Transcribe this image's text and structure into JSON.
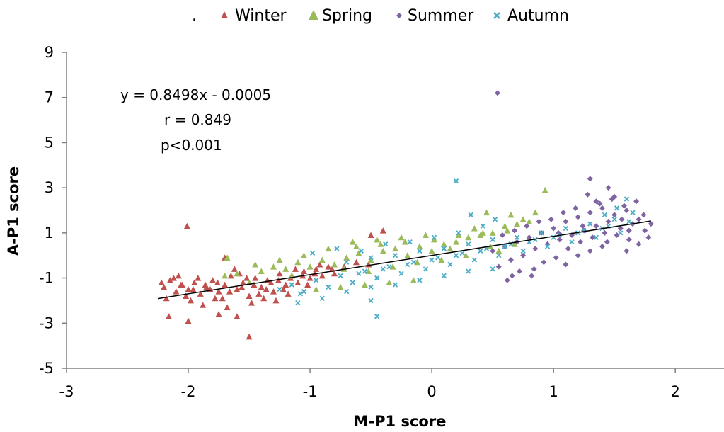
{
  "chart_data": {
    "type": "scatter",
    "title": "",
    "xlabel": "M-P1 score",
    "ylabel": "A-P1 score",
    "xlim": [
      -3,
      2.4
    ],
    "ylim": [
      -5,
      9
    ],
    "xticks": [
      "-3",
      "-2",
      "-1",
      "0",
      "1",
      "2"
    ],
    "yticks": [
      "-5",
      "-3",
      "-1",
      "1",
      "3",
      "5",
      "7",
      "9"
    ],
    "legend_position": "top",
    "legend_prefix": ".",
    "grid": false,
    "annotations": [
      "y = 0.8498x - 0.0005",
      "r = 0.849",
      "p<0.001"
    ],
    "regression": {
      "slope": 0.8498,
      "intercept": -0.0005,
      "x_range": [
        -2.25,
        1.8
      ],
      "color": "#000000"
    },
    "series": [
      {
        "name": "Winter",
        "marker": "triangle",
        "color": "#C0504D",
        "points": [
          [
            -2.2,
            -1.4
          ],
          [
            -2.15,
            -1.1
          ],
          [
            -2.1,
            -1.6
          ],
          [
            -2.05,
            -1.3
          ],
          [
            -2.0,
            -1.5
          ],
          [
            -1.95,
            -1.2
          ],
          [
            -1.9,
            -1.7
          ],
          [
            -1.85,
            -1.4
          ],
          [
            -1.8,
            -1.1
          ],
          [
            -1.75,
            -1.6
          ],
          [
            -1.7,
            -1.3
          ],
          [
            -1.65,
            -0.9
          ],
          [
            -1.6,
            -1.5
          ],
          [
            -1.55,
            -1.2
          ],
          [
            -1.5,
            -1.8
          ],
          [
            -1.45,
            -1.0
          ],
          [
            -1.4,
            -1.4
          ],
          [
            -1.35,
            -1.1
          ],
          [
            -1.3,
            -1.6
          ],
          [
            -1.25,
            -0.8
          ],
          [
            -1.2,
            -1.3
          ],
          [
            -1.15,
            -0.9
          ],
          [
            -1.1,
            -1.2
          ],
          [
            -1.05,
            -0.7
          ],
          [
            -1.0,
            -1.0
          ],
          [
            -0.95,
            -0.6
          ],
          [
            -0.9,
            -0.9
          ],
          [
            -0.85,
            -0.5
          ],
          [
            -0.8,
            -0.8
          ],
          [
            -2.18,
            -1.9
          ],
          [
            -2.08,
            -0.9
          ],
          [
            -1.98,
            -2.0
          ],
          [
            -1.88,
            -2.2
          ],
          [
            -1.78,
            -1.9
          ],
          [
            -1.68,
            -2.3
          ],
          [
            -1.58,
            -0.8
          ],
          [
            -1.48,
            -2.1
          ],
          [
            -1.38,
            -1.9
          ],
          [
            -1.28,
            -2.0
          ],
          [
            -1.18,
            -1.7
          ],
          [
            -2.12,
            -1.0
          ],
          [
            -2.02,
            -1.8
          ],
          [
            -1.92,
            -1.0
          ],
          [
            -1.82,
            -1.5
          ],
          [
            -1.72,
            -1.9
          ],
          [
            -1.62,
            -0.6
          ],
          [
            -1.52,
            -1.0
          ],
          [
            -1.42,
            -1.7
          ],
          [
            -1.32,
            -1.2
          ],
          [
            -1.22,
            -1.5
          ],
          [
            -1.12,
            -0.6
          ],
          [
            -1.02,
            -1.3
          ],
          [
            -0.92,
            -0.4
          ],
          [
            -0.82,
            -0.6
          ],
          [
            -0.72,
            -0.5
          ],
          [
            -0.62,
            -0.3
          ],
          [
            -0.52,
            -0.4
          ],
          [
            -2.22,
            -1.2
          ],
          [
            -2.06,
            -1.3
          ],
          [
            -1.96,
            -1.5
          ],
          [
            -1.86,
            -1.3
          ],
          [
            -1.76,
            -1.2
          ],
          [
            -1.66,
            -1.6
          ],
          [
            -1.56,
            -1.4
          ],
          [
            -1.46,
            -1.3
          ],
          [
            -1.36,
            -1.5
          ],
          [
            -1.26,
            -1.1
          ],
          [
            -1.16,
            -1.0
          ],
          [
            -1.06,
            -0.9
          ],
          [
            -0.96,
            -0.8
          ],
          [
            -2.16,
            -2.7
          ],
          [
            -2.0,
            -2.9
          ],
          [
            -1.75,
            -2.6
          ],
          [
            -1.6,
            -2.7
          ],
          [
            -2.01,
            1.3
          ],
          [
            -1.5,
            -3.6
          ],
          [
            -0.5,
            0.9
          ],
          [
            -0.4,
            1.1
          ],
          [
            -1.7,
            -0.1
          ]
        ]
      },
      {
        "name": "Spring",
        "marker": "triangle",
        "color": "#9BBB59",
        "points": [
          [
            -1.7,
            -0.9
          ],
          [
            -1.6,
            -0.8
          ],
          [
            -1.5,
            -1.2
          ],
          [
            -1.4,
            -0.7
          ],
          [
            -1.3,
            -0.5
          ],
          [
            -1.2,
            -0.6
          ],
          [
            -1.1,
            -0.3
          ],
          [
            -1.0,
            -0.5
          ],
          [
            -0.9,
            -0.2
          ],
          [
            -0.8,
            -0.4
          ],
          [
            -0.7,
            -0.1
          ],
          [
            -0.6,
            0.1
          ],
          [
            -0.5,
            -0.2
          ],
          [
            -0.4,
            0.2
          ],
          [
            -0.3,
            0.3
          ],
          [
            -0.2,
            0.0
          ],
          [
            -0.1,
            0.4
          ],
          [
            0.0,
            0.2
          ],
          [
            0.1,
            0.5
          ],
          [
            0.2,
            0.6
          ],
          [
            0.3,
            0.8
          ],
          [
            0.4,
            0.9
          ],
          [
            0.5,
            1.0
          ],
          [
            0.6,
            1.3
          ],
          [
            0.7,
            1.4
          ],
          [
            0.8,
            1.5
          ],
          [
            -0.75,
            -1.4
          ],
          [
            -0.55,
            -1.3
          ],
          [
            -0.35,
            -1.2
          ],
          [
            -0.15,
            -1.1
          ],
          [
            -0.95,
            -1.5
          ],
          [
            -0.65,
            0.6
          ],
          [
            -0.45,
            0.7
          ],
          [
            -0.25,
            0.8
          ],
          [
            -0.05,
            0.9
          ],
          [
            0.15,
            0.3
          ],
          [
            0.35,
            1.2
          ],
          [
            0.55,
            0.2
          ],
          [
            0.75,
            1.6
          ],
          [
            0.45,
            1.9
          ],
          [
            0.65,
            1.8
          ],
          [
            0.85,
            1.9
          ],
          [
            0.93,
            2.9
          ],
          [
            -1.25,
            -0.2
          ],
          [
            -1.05,
            0.0
          ],
          [
            -0.85,
            0.3
          ],
          [
            -0.72,
            -0.6
          ],
          [
            -0.52,
            -0.7
          ],
          [
            -0.32,
            -0.5
          ],
          [
            -0.12,
            -0.3
          ],
          [
            0.08,
            -0.2
          ],
          [
            0.28,
            0.0
          ],
          [
            0.48,
            0.4
          ],
          [
            0.68,
            0.5
          ],
          [
            -1.45,
            -0.4
          ],
          [
            -1.15,
            -0.9
          ],
          [
            -0.62,
            0.4
          ],
          [
            -0.42,
            0.5
          ],
          [
            -0.22,
            0.6
          ],
          [
            0.02,
            0.7
          ],
          [
            0.22,
            0.9
          ],
          [
            0.42,
            1.0
          ],
          [
            0.62,
            1.1
          ],
          [
            -1.68,
            -0.1
          ]
        ]
      },
      {
        "name": "Summer",
        "marker": "diamond",
        "color": "#8064A2",
        "points": [
          [
            0.5,
            0.2
          ],
          [
            0.55,
            -0.5
          ],
          [
            0.6,
            0.4
          ],
          [
            0.65,
            -0.2
          ],
          [
            0.7,
            0.6
          ],
          [
            0.75,
            0.0
          ],
          [
            0.8,
            0.8
          ],
          [
            0.85,
            0.3
          ],
          [
            0.9,
            1.0
          ],
          [
            0.95,
            0.5
          ],
          [
            1.0,
            1.2
          ],
          [
            1.05,
            0.7
          ],
          [
            1.1,
            1.5
          ],
          [
            1.15,
            0.9
          ],
          [
            1.2,
            1.7
          ],
          [
            1.25,
            1.1
          ],
          [
            1.3,
            1.9
          ],
          [
            1.35,
            1.3
          ],
          [
            1.4,
            2.1
          ],
          [
            1.45,
            1.5
          ],
          [
            1.5,
            1.8
          ],
          [
            1.55,
            1.2
          ],
          [
            1.6,
            2.0
          ],
          [
            1.65,
            1.4
          ],
          [
            1.7,
            1.6
          ],
          [
            1.75,
            1.1
          ],
          [
            1.8,
            1.4
          ],
          [
            0.62,
            -1.1
          ],
          [
            0.72,
            -0.7
          ],
          [
            0.82,
            -0.9
          ],
          [
            0.92,
            -0.3
          ],
          [
            1.02,
            -0.1
          ],
          [
            1.12,
            0.3
          ],
          [
            1.22,
            0.6
          ],
          [
            1.32,
            0.8
          ],
          [
            1.42,
            1.0
          ],
          [
            1.52,
            0.9
          ],
          [
            1.62,
            0.7
          ],
          [
            1.28,
            2.7
          ],
          [
            1.3,
            3.4
          ],
          [
            1.35,
            2.4
          ],
          [
            1.45,
            3.0
          ],
          [
            1.5,
            2.6
          ],
          [
            1.58,
            2.2
          ],
          [
            1.68,
            2.4
          ],
          [
            0.54,
            7.2
          ],
          [
            1.1,
            -0.4
          ],
          [
            1.2,
            0.0
          ],
          [
            1.3,
            0.2
          ],
          [
            1.4,
            0.4
          ],
          [
            1.6,
            0.2
          ],
          [
            1.7,
            0.5
          ],
          [
            1.78,
            0.8
          ],
          [
            0.58,
            0.9
          ],
          [
            0.68,
            1.1
          ],
          [
            0.78,
            1.3
          ],
          [
            0.88,
            1.5
          ],
          [
            0.98,
            1.6
          ],
          [
            1.08,
            1.9
          ],
          [
            1.18,
            2.1
          ],
          [
            1.38,
            2.3
          ],
          [
            1.48,
            2.5
          ],
          [
            1.56,
            1.6
          ],
          [
            1.74,
            1.8
          ],
          [
            1.62,
            1.1
          ],
          [
            1.44,
            0.6
          ],
          [
            1.24,
            1.3
          ],
          [
            1.04,
            1.0
          ],
          [
            0.84,
            -0.6
          ],
          [
            0.66,
            -0.9
          ]
        ]
      },
      {
        "name": "Autumn",
        "marker": "x",
        "color": "#4BACC6",
        "points": [
          [
            -1.25,
            -1.5
          ],
          [
            -1.15,
            -1.3
          ],
          [
            -1.05,
            -1.6
          ],
          [
            -0.95,
            -1.1
          ],
          [
            -0.85,
            -1.4
          ],
          [
            -0.75,
            -0.9
          ],
          [
            -0.65,
            -1.2
          ],
          [
            -0.55,
            -0.7
          ],
          [
            -0.45,
            -1.0
          ],
          [
            -0.35,
            -0.5
          ],
          [
            -0.25,
            -0.8
          ],
          [
            -0.15,
            -0.3
          ],
          [
            -0.05,
            -0.6
          ],
          [
            0.05,
            -0.1
          ],
          [
            0.15,
            -0.4
          ],
          [
            0.25,
            0.1
          ],
          [
            0.35,
            -0.2
          ],
          [
            0.45,
            0.3
          ],
          [
            0.55,
            0.0
          ],
          [
            0.65,
            0.5
          ],
          [
            0.75,
            0.2
          ],
          [
            0.85,
            0.7
          ],
          [
            0.95,
            0.4
          ],
          [
            1.05,
            0.9
          ],
          [
            1.15,
            0.6
          ],
          [
            1.25,
            1.1
          ],
          [
            1.35,
            0.8
          ],
          [
            1.45,
            1.3
          ],
          [
            1.55,
            1.0
          ],
          [
            1.62,
            1.5
          ],
          [
            -1.1,
            -2.1
          ],
          [
            -0.9,
            -1.9
          ],
          [
            -0.7,
            -1.6
          ],
          [
            -0.5,
            -1.4
          ],
          [
            -0.3,
            -1.3
          ],
          [
            -0.1,
            -1.1
          ],
          [
            0.1,
            -0.9
          ],
          [
            0.3,
            -0.7
          ],
          [
            0.5,
            -0.6
          ],
          [
            -0.5,
            -2.0
          ],
          [
            -0.45,
            -2.7
          ],
          [
            -1.08,
            -1.7
          ],
          [
            -0.98,
            0.1
          ],
          [
            -0.78,
            0.3
          ],
          [
            -0.58,
            0.2
          ],
          [
            -0.38,
            0.5
          ],
          [
            -0.18,
            0.6
          ],
          [
            0.02,
            0.8
          ],
          [
            0.22,
            1.0
          ],
          [
            0.42,
            1.3
          ],
          [
            0.52,
            1.6
          ],
          [
            0.2,
            3.3
          ],
          [
            0.32,
            1.8
          ],
          [
            1.6,
            2.5
          ],
          [
            1.65,
            1.9
          ],
          [
            1.52,
            2.1
          ],
          [
            1.42,
            1.8
          ],
          [
            -0.7,
            -0.3
          ],
          [
            -0.5,
            -0.1
          ],
          [
            -0.3,
            0.0
          ],
          [
            -0.1,
            0.2
          ],
          [
            0.1,
            0.3
          ],
          [
            0.3,
            0.5
          ],
          [
            0.5,
            0.7
          ],
          [
            0.7,
            0.8
          ],
          [
            0.9,
            1.0
          ],
          [
            1.1,
            1.2
          ],
          [
            1.3,
            1.4
          ],
          [
            1.5,
            1.6
          ],
          [
            -0.6,
            -0.8
          ],
          [
            -0.4,
            -0.6
          ],
          [
            -0.2,
            -0.4
          ],
          [
            0.0,
            -0.2
          ],
          [
            0.2,
            0.0
          ],
          [
            0.4,
            0.2
          ],
          [
            0.6,
            0.4
          ],
          [
            0.8,
            0.6
          ],
          [
            1.0,
            0.8
          ],
          [
            1.2,
            1.0
          ],
          [
            1.4,
            1.2
          ]
        ]
      }
    ]
  }
}
